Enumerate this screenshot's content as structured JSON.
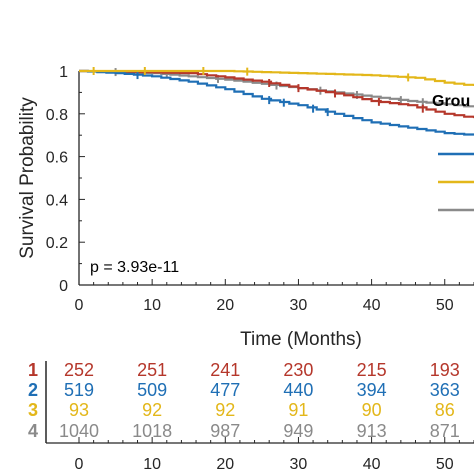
{
  "chart_data": {
    "type": "line",
    "subtype": "kaplan-meier",
    "xlabel": "Time (Months)",
    "ylabel": "Survival Probability",
    "xlim": [
      0,
      54
    ],
    "ylim": [
      0,
      1
    ],
    "xticks": [
      0,
      10,
      20,
      30,
      40,
      50
    ],
    "yticks": [
      0,
      0.2,
      0.4,
      0.6,
      0.8,
      1
    ],
    "ytick_labels": [
      "0",
      "0.2",
      "0.4",
      "0.6",
      "0.8",
      "1"
    ],
    "annotation": "p = 3.93e-11",
    "legend_title": "Grou",
    "legend_placement": "right, clipped",
    "grid": false,
    "series": [
      {
        "key": "1",
        "color": "#b5372b",
        "points": [
          [
            0,
            1
          ],
          [
            8,
            0.995
          ],
          [
            15,
            0.99
          ],
          [
            20,
            0.97
          ],
          [
            25,
            0.95
          ],
          [
            30,
            0.92
          ],
          [
            35,
            0.895
          ],
          [
            40,
            0.86
          ],
          [
            45,
            0.84
          ],
          [
            50,
            0.8
          ],
          [
            54,
            0.78
          ]
        ],
        "censors": [
          26,
          30,
          35,
          41,
          47
        ]
      },
      {
        "key": "2",
        "color": "#1f6fb5",
        "points": [
          [
            0,
            1
          ],
          [
            5,
            0.99
          ],
          [
            10,
            0.975
          ],
          [
            15,
            0.95
          ],
          [
            20,
            0.915
          ],
          [
            25,
            0.87
          ],
          [
            30,
            0.84
          ],
          [
            35,
            0.8
          ],
          [
            40,
            0.76
          ],
          [
            45,
            0.735
          ],
          [
            50,
            0.71
          ],
          [
            54,
            0.7
          ]
        ],
        "censors": [
          8,
          26,
          28,
          32,
          34
        ]
      },
      {
        "key": "3",
        "color": "#e3b71a",
        "points": [
          [
            0,
            1
          ],
          [
            20,
            1
          ],
          [
            30,
            0.99
          ],
          [
            40,
            0.98
          ],
          [
            46,
            0.968
          ],
          [
            50,
            0.946
          ],
          [
            54,
            0.93
          ]
        ],
        "censors": [
          2,
          9,
          17,
          23,
          45
        ]
      },
      {
        "key": "4",
        "color": "#8a8a8a",
        "points": [
          [
            0,
            1
          ],
          [
            10,
            0.99
          ],
          [
            15,
            0.975
          ],
          [
            20,
            0.96
          ],
          [
            25,
            0.94
          ],
          [
            30,
            0.92
          ],
          [
            35,
            0.9
          ],
          [
            40,
            0.88
          ],
          [
            45,
            0.86
          ],
          [
            50,
            0.845
          ],
          [
            54,
            0.83
          ]
        ],
        "censors": [
          5,
          12,
          19,
          27,
          33,
          38,
          44,
          47
        ]
      }
    ],
    "legend_lines": [
      "#1f6fb5",
      "#e3b71a",
      "#8a8a8a"
    ],
    "risk_table": {
      "times": [
        0,
        10,
        20,
        30,
        40,
        50
      ],
      "tick_labels": [
        "0",
        "10",
        "20",
        "30",
        "40",
        "50"
      ],
      "rows": [
        {
          "label": "1",
          "color": "#b5372b",
          "values": [
            "252",
            "251",
            "241",
            "230",
            "215",
            "193"
          ]
        },
        {
          "label": "2",
          "color": "#1f6fb5",
          "values": [
            "519",
            "509",
            "477",
            "440",
            "394",
            "363"
          ]
        },
        {
          "label": "3",
          "color": "#e3b71a",
          "values": [
            "93",
            "92",
            "92",
            "91",
            "90",
            "86"
          ]
        },
        {
          "label": "4",
          "color": "#8a8a8a",
          "values": [
            "1040",
            "1018",
            "987",
            "949",
            "913",
            "871"
          ]
        }
      ]
    }
  }
}
